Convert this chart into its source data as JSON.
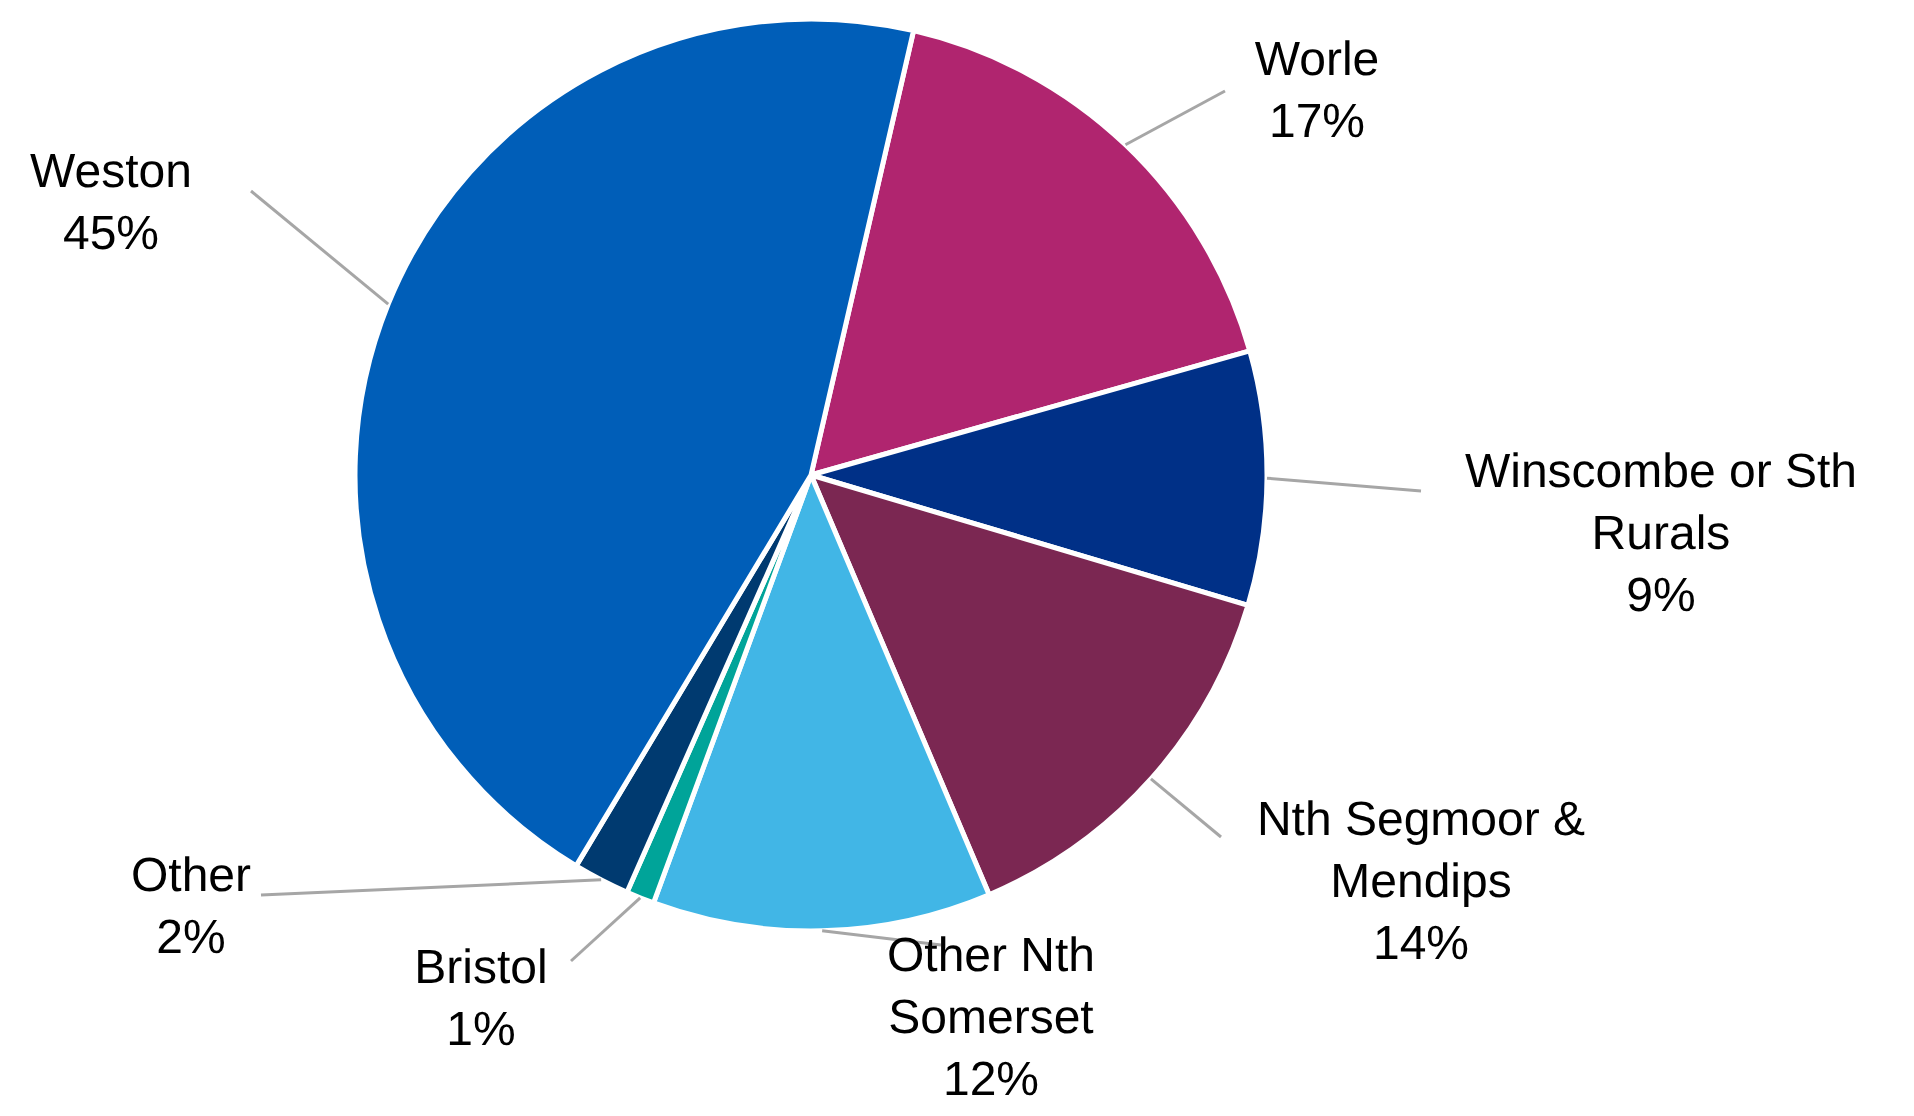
{
  "chart_data": {
    "type": "pie",
    "categories": [
      "Worle",
      "Winscombe or Sth Rurals",
      "Nth Segmoor & Mendips",
      "Other Nth Somerset",
      "Bristol",
      "Other",
      "Weston"
    ],
    "values": [
      17,
      9,
      14,
      12,
      1,
      2,
      45
    ],
    "colors": [
      "#b0256f",
      "#003087",
      "#7b2752",
      "#41b6e6",
      "#00a499",
      "#003a70",
      "#005eb8"
    ],
    "value_labels": [
      "17%",
      "9%",
      "14%",
      "12%",
      "1%",
      "2%",
      "45%"
    ]
  }
}
